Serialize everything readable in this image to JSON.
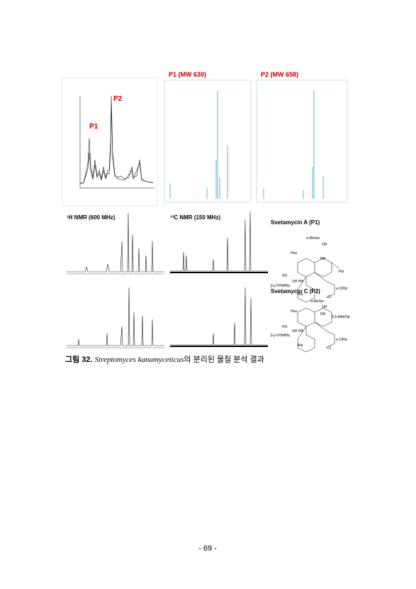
{
  "figure": {
    "hplc": {
      "peak_labels": [
        "P1",
        "P2"
      ]
    },
    "ms": [
      {
        "title": "P1 (MW 630)"
      },
      {
        "title": "P2 (MW 658)"
      }
    ],
    "nmr": {
      "h1": "¹H NMR (600 MHz)",
      "c13": "¹³C NMR (150 MHz)"
    },
    "structures": [
      {
        "name": "Svetamycin A (P1)",
        "labels": [
          "α-MeSer",
          "OH",
          "Hsa",
          "NH",
          "Pip",
          "HO",
          "β,γ-OHdiPip",
          "OH HN",
          "Ala",
          "γ-ClPip",
          "Cl"
        ]
      },
      {
        "name": "Svetamycin C (P2)",
        "labels": [
          "α-MeSer",
          "OH",
          "Hsa",
          "NH",
          "δ,δ-dMePip",
          "HO",
          "β,γ-OHdiPip",
          "OH HN",
          "Ala",
          "γ-ClPip",
          "Cl"
        ]
      }
    ],
    "caption": {
      "label": "그림 32.",
      "species": "Streptomyces kanamyceticus",
      "text": "의 분리된 물질 분석 결과"
    }
  },
  "footer": {
    "page": "- 69 -"
  }
}
